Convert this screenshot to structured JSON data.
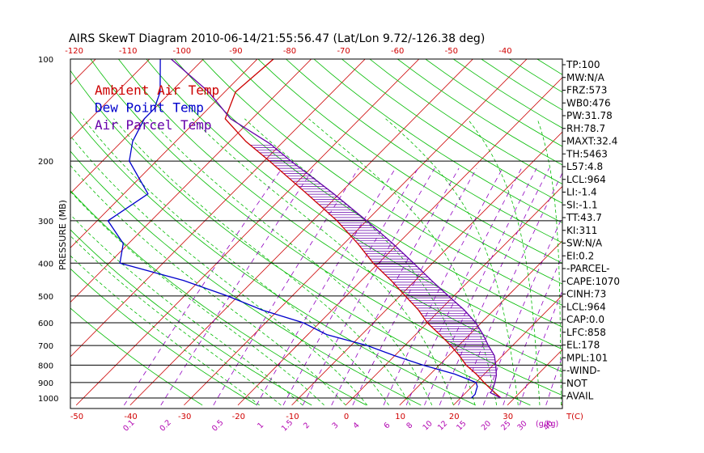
{
  "chart_data": {
    "type": "line",
    "title": "AIRS SkewT Diagram 2010-06-14/21:55:56.47 (Lat/Lon 9.72/-126.38 deg)",
    "ylabel": "PRESSURE (MB)",
    "xlabel_bottom_unit": "T(C)",
    "mixing_unit": "(g/kg)",
    "y_scale": "log",
    "ylim": [
      1000,
      100
    ],
    "pressure_ticks": [
      100,
      200,
      300,
      400,
      500,
      600,
      700,
      800,
      900,
      1000
    ],
    "pressure_tick_labels": [
      "100",
      "200",
      "300",
      "400",
      "500",
      "600",
      "700",
      "800",
      "900",
      "1000"
    ],
    "temp_ticks_bottom": [
      -50,
      -40,
      -30,
      -20,
      -10,
      0,
      10,
      20,
      30
    ],
    "temp_tick_labels_bottom": [
      "-50",
      "-40",
      "-30",
      "-20",
      "-10",
      "0",
      "10",
      "20",
      "30"
    ],
    "temp_ticks_top": [
      -120,
      -110,
      -100,
      -90,
      -80,
      -70,
      -60,
      -50,
      -40
    ],
    "temp_tick_labels_top": [
      "-120",
      "-110",
      "-100",
      "-90",
      "-80",
      "-70",
      "-60",
      "-50",
      "-40"
    ],
    "mixing_ratio_labels": [
      "0.1",
      "0.2",
      "0.5",
      "1",
      "1.5",
      "2",
      "3",
      "4",
      "6",
      "8",
      "10",
      "12",
      "15",
      "20",
      "25",
      "30",
      "40"
    ],
    "legend": [
      {
        "label": "Ambient Air Temp",
        "color": "#cc0000"
      },
      {
        "label": "Dew Point Temp",
        "color": "#0000cc"
      },
      {
        "label": "Air Parcel Temp",
        "color": "#6600aa"
      }
    ],
    "colors": {
      "isotherm": "#cc0000",
      "dry_adiabat": "#00bb00",
      "moist_adiabat": "#00bb00",
      "mixing_ratio": "#9000c0",
      "isobar": "#000000"
    },
    "series": [
      {
        "name": "Ambient Air Temp",
        "p": [
          1000,
          975,
          950,
          925,
          900,
          850,
          800,
          750,
          700,
          650,
          600,
          550,
          500,
          450,
          400,
          350,
          300,
          250,
          200,
          175,
          150,
          125,
          100
        ],
        "t": [
          27.5,
          26,
          24.5,
          23,
          21.5,
          18.5,
          15,
          12,
          8.5,
          4.5,
          0,
          -4,
          -9,
          -14.5,
          -21,
          -27.5,
          -35.5,
          -46,
          -59,
          -67,
          -75,
          -78,
          -77
        ]
      },
      {
        "name": "Dew Point Temp",
        "p": [
          1000,
          975,
          950,
          925,
          900,
          850,
          800,
          750,
          700,
          650,
          600,
          550,
          500,
          450,
          400,
          350,
          300,
          250,
          200,
          175,
          150,
          140,
          125,
          100
        ],
        "t": [
          22,
          22,
          21.5,
          21,
          20,
          14.5,
          7,
          0,
          -7,
          -16.5,
          -23,
          -33,
          -42,
          -53,
          -68,
          -71,
          -78,
          -75.5,
          -85,
          -88,
          -90,
          -90,
          -92,
          -98
        ]
      },
      {
        "name": "Air Parcel Temp",
        "p": [
          1000,
          964,
          950,
          900,
          858,
          800,
          750,
          700,
          650,
          600,
          550,
          500,
          450,
          400,
          350,
          300,
          250,
          200,
          178,
          150,
          125,
          100
        ],
        "t": [
          27.5,
          24.5,
          24.5,
          23.5,
          22.5,
          20.5,
          18.5,
          15.5,
          12.5,
          9,
          4.5,
          -1,
          -7,
          -13.5,
          -21,
          -30,
          -41,
          -55,
          -62,
          -74,
          -83,
          -96
        ]
      }
    ],
    "parameters": [
      "TP:100",
      "MW:N/A",
      "FRZ:573",
      "WB0:476",
      "PW:31.78",
      "RH:78.7",
      "MAXT:32.4",
      "TH:5463",
      "L57:4.8",
      "LCL:964",
      "LI:-1.4",
      "SI:-1.1",
      "TT:43.7",
      "KI:311",
      "SW:N/A",
      "EI:0.2",
      "-PARCEL-",
      "CAPE:1070",
      "CINH:73",
      "LCL:964",
      "CAP:0.0",
      "LFC:858",
      "EL:178",
      "MPL:101",
      "-WIND-",
      "NOT",
      "AVAIL"
    ]
  }
}
